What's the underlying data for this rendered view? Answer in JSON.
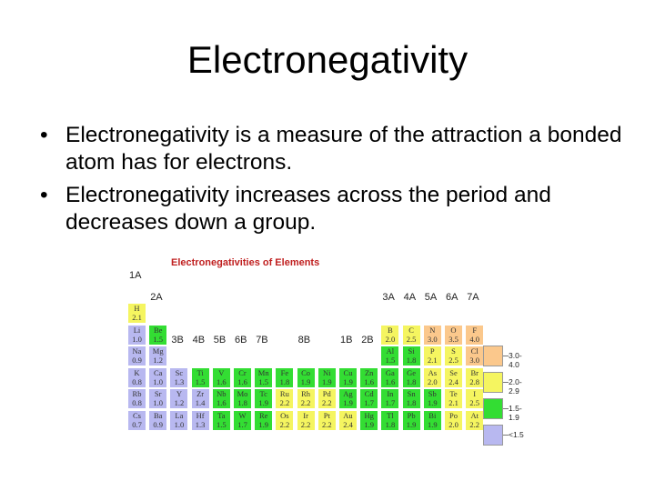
{
  "title": "Electronegativity",
  "bullets": [
    "Electronegativity is a measure of the attraction a bonded atom has for electrons.",
    "Electronegativity increases across the period and decreases down a group."
  ],
  "figure": {
    "title": "Electronegativities of Elements",
    "colors": {
      "r35_40": "#fbc88c",
      "r20_29": "#f5f560",
      "r15_19": "#33dd33",
      "rlt15": "#b8b8f0"
    },
    "group_labels": [
      {
        "t": "1A",
        "c": 0,
        "r": -1
      },
      {
        "t": "2A",
        "c": 1,
        "r": 0
      },
      {
        "t": "3B",
        "c": 2,
        "r": 2
      },
      {
        "t": "4B",
        "c": 3,
        "r": 2
      },
      {
        "t": "5B",
        "c": 4,
        "r": 2
      },
      {
        "t": "6B",
        "c": 5,
        "r": 2
      },
      {
        "t": "7B",
        "c": 6,
        "r": 2
      },
      {
        "t": "8B",
        "c": 8,
        "r": 2
      },
      {
        "t": "1B",
        "c": 10,
        "r": 2
      },
      {
        "t": "2B",
        "c": 11,
        "r": 2
      },
      {
        "t": "3A",
        "c": 12,
        "r": 0
      },
      {
        "t": "4A",
        "c": 13,
        "r": 0
      },
      {
        "t": "5A",
        "c": 14,
        "r": 0
      },
      {
        "t": "6A",
        "c": 15,
        "r": 0
      },
      {
        "t": "7A",
        "c": 16,
        "r": 0
      }
    ],
    "elements": [
      {
        "s": "H",
        "v": "2.1",
        "c": 0,
        "r": 0,
        "k": "r20_29"
      },
      {
        "s": "Li",
        "v": "1.0",
        "c": 0,
        "r": 1,
        "k": "rlt15"
      },
      {
        "s": "Be",
        "v": "1.5",
        "c": 1,
        "r": 1,
        "k": "r15_19"
      },
      {
        "s": "B",
        "v": "2.0",
        "c": 12,
        "r": 1,
        "k": "r20_29"
      },
      {
        "s": "C",
        "v": "2.5",
        "c": 13,
        "r": 1,
        "k": "r20_29"
      },
      {
        "s": "N",
        "v": "3.0",
        "c": 14,
        "r": 1,
        "k": "r35_40"
      },
      {
        "s": "O",
        "v": "3.5",
        "c": 15,
        "r": 1,
        "k": "r35_40"
      },
      {
        "s": "F",
        "v": "4.0",
        "c": 16,
        "r": 1,
        "k": "r35_40"
      },
      {
        "s": "Na",
        "v": "0.9",
        "c": 0,
        "r": 2,
        "k": "rlt15"
      },
      {
        "s": "Mg",
        "v": "1.2",
        "c": 1,
        "r": 2,
        "k": "rlt15"
      },
      {
        "s": "Al",
        "v": "1.5",
        "c": 12,
        "r": 2,
        "k": "r15_19"
      },
      {
        "s": "Si",
        "v": "1.8",
        "c": 13,
        "r": 2,
        "k": "r15_19"
      },
      {
        "s": "P",
        "v": "2.1",
        "c": 14,
        "r": 2,
        "k": "r20_29"
      },
      {
        "s": "S",
        "v": "2.5",
        "c": 15,
        "r": 2,
        "k": "r20_29"
      },
      {
        "s": "Cl",
        "v": "3.0",
        "c": 16,
        "r": 2,
        "k": "r35_40"
      },
      {
        "s": "K",
        "v": "0.8",
        "c": 0,
        "r": 3,
        "k": "rlt15"
      },
      {
        "s": "Ca",
        "v": "1.0",
        "c": 1,
        "r": 3,
        "k": "rlt15"
      },
      {
        "s": "Sc",
        "v": "1.3",
        "c": 2,
        "r": 3,
        "k": "rlt15"
      },
      {
        "s": "Ti",
        "v": "1.5",
        "c": 3,
        "r": 3,
        "k": "r15_19"
      },
      {
        "s": "V",
        "v": "1.6",
        "c": 4,
        "r": 3,
        "k": "r15_19"
      },
      {
        "s": "Cr",
        "v": "1.6",
        "c": 5,
        "r": 3,
        "k": "r15_19"
      },
      {
        "s": "Mn",
        "v": "1.5",
        "c": 6,
        "r": 3,
        "k": "r15_19"
      },
      {
        "s": "Fe",
        "v": "1.8",
        "c": 7,
        "r": 3,
        "k": "r15_19"
      },
      {
        "s": "Co",
        "v": "1.9",
        "c": 8,
        "r": 3,
        "k": "r15_19"
      },
      {
        "s": "Ni",
        "v": "1.9",
        "c": 9,
        "r": 3,
        "k": "r15_19"
      },
      {
        "s": "Cu",
        "v": "1.9",
        "c": 10,
        "r": 3,
        "k": "r15_19"
      },
      {
        "s": "Zn",
        "v": "1.6",
        "c": 11,
        "r": 3,
        "k": "r15_19"
      },
      {
        "s": "Ga",
        "v": "1.6",
        "c": 12,
        "r": 3,
        "k": "r15_19"
      },
      {
        "s": "Ge",
        "v": "1.8",
        "c": 13,
        "r": 3,
        "k": "r15_19"
      },
      {
        "s": "As",
        "v": "2.0",
        "c": 14,
        "r": 3,
        "k": "r20_29"
      },
      {
        "s": "Se",
        "v": "2.4",
        "c": 15,
        "r": 3,
        "k": "r20_29"
      },
      {
        "s": "Br",
        "v": "2.8",
        "c": 16,
        "r": 3,
        "k": "r20_29"
      },
      {
        "s": "Rb",
        "v": "0.8",
        "c": 0,
        "r": 4,
        "k": "rlt15"
      },
      {
        "s": "Sr",
        "v": "1.0",
        "c": 1,
        "r": 4,
        "k": "rlt15"
      },
      {
        "s": "Y",
        "v": "1.2",
        "c": 2,
        "r": 4,
        "k": "rlt15"
      },
      {
        "s": "Zr",
        "v": "1.4",
        "c": 3,
        "r": 4,
        "k": "rlt15"
      },
      {
        "s": "Nb",
        "v": "1.6",
        "c": 4,
        "r": 4,
        "k": "r15_19"
      },
      {
        "s": "Mo",
        "v": "1.8",
        "c": 5,
        "r": 4,
        "k": "r15_19"
      },
      {
        "s": "Tc",
        "v": "1.9",
        "c": 6,
        "r": 4,
        "k": "r15_19"
      },
      {
        "s": "Ru",
        "v": "2.2",
        "c": 7,
        "r": 4,
        "k": "r20_29"
      },
      {
        "s": "Rh",
        "v": "2.2",
        "c": 8,
        "r": 4,
        "k": "r20_29"
      },
      {
        "s": "Pd",
        "v": "2.2",
        "c": 9,
        "r": 4,
        "k": "r20_29"
      },
      {
        "s": "Ag",
        "v": "1.9",
        "c": 10,
        "r": 4,
        "k": "r15_19"
      },
      {
        "s": "Cd",
        "v": "1.7",
        "c": 11,
        "r": 4,
        "k": "r15_19"
      },
      {
        "s": "In",
        "v": "1.7",
        "c": 12,
        "r": 4,
        "k": "r15_19"
      },
      {
        "s": "Sn",
        "v": "1.8",
        "c": 13,
        "r": 4,
        "k": "r15_19"
      },
      {
        "s": "Sb",
        "v": "1.9",
        "c": 14,
        "r": 4,
        "k": "r15_19"
      },
      {
        "s": "Te",
        "v": "2.1",
        "c": 15,
        "r": 4,
        "k": "r20_29"
      },
      {
        "s": "I",
        "v": "2.5",
        "c": 16,
        "r": 4,
        "k": "r20_29"
      },
      {
        "s": "Cs",
        "v": "0.7",
        "c": 0,
        "r": 5,
        "k": "rlt15"
      },
      {
        "s": "Ba",
        "v": "0.9",
        "c": 1,
        "r": 5,
        "k": "rlt15"
      },
      {
        "s": "La",
        "v": "1.0",
        "c": 2,
        "r": 5,
        "k": "rlt15"
      },
      {
        "s": "Hf",
        "v": "1.3",
        "c": 3,
        "r": 5,
        "k": "rlt15"
      },
      {
        "s": "Ta",
        "v": "1.5",
        "c": 4,
        "r": 5,
        "k": "r15_19"
      },
      {
        "s": "W",
        "v": "1.7",
        "c": 5,
        "r": 5,
        "k": "r15_19"
      },
      {
        "s": "Re",
        "v": "1.9",
        "c": 6,
        "r": 5,
        "k": "r15_19"
      },
      {
        "s": "Os",
        "v": "2.2",
        "c": 7,
        "r": 5,
        "k": "r20_29"
      },
      {
        "s": "Ir",
        "v": "2.2",
        "c": 8,
        "r": 5,
        "k": "r20_29"
      },
      {
        "s": "Pt",
        "v": "2.2",
        "c": 9,
        "r": 5,
        "k": "r20_29"
      },
      {
        "s": "Au",
        "v": "2.4",
        "c": 10,
        "r": 5,
        "k": "r20_29"
      },
      {
        "s": "Hg",
        "v": "1.9",
        "c": 11,
        "r": 5,
        "k": "r15_19"
      },
      {
        "s": "Tl",
        "v": "1.8",
        "c": 12,
        "r": 5,
        "k": "r15_19"
      },
      {
        "s": "Pb",
        "v": "1.9",
        "c": 13,
        "r": 5,
        "k": "r15_19"
      },
      {
        "s": "Bi",
        "v": "1.9",
        "c": 14,
        "r": 5,
        "k": "r15_19"
      },
      {
        "s": "Po",
        "v": "2.0",
        "c": 15,
        "r": 5,
        "k": "r20_29"
      },
      {
        "s": "At",
        "v": "2.2",
        "c": 16,
        "r": 5,
        "k": "r20_29"
      }
    ],
    "legend": [
      {
        "label": "3.0-4.0",
        "k": "r35_40"
      },
      {
        "label": "2.0-2.9",
        "k": "r20_29"
      },
      {
        "label": "1.5-1.9",
        "k": "r15_19"
      },
      {
        "label": "<1.5",
        "k": "rlt15"
      }
    ]
  }
}
